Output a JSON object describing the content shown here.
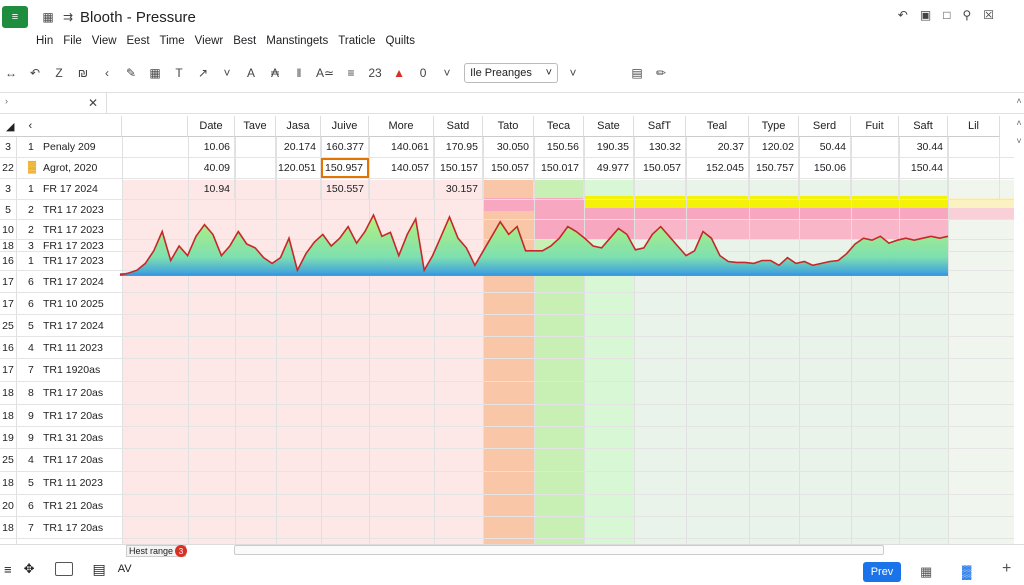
{
  "app": {
    "logo_text": "≡",
    "title": "Blooth - Pressure"
  },
  "menu": [
    "Hin",
    "File",
    "View",
    "Eest",
    "Time",
    "Viewr",
    "Best",
    "Manstingets",
    "Traticle",
    "Quilts"
  ],
  "toolbar": {
    "font_size": "23",
    "zero": "0",
    "font_name": "Ile Preanges"
  },
  "sheet_columns": [
    "Date",
    "Tave",
    "Jasa",
    "Juive",
    "More",
    "Satd",
    "Tato",
    "Teca",
    "Sate",
    "SafT",
    "Teal",
    "Type",
    "Serd",
    "Fuit",
    "Saft",
    "Lil"
  ],
  "rows": [
    {
      "num": "3",
      "sub": "1",
      "label": "Penaly 209",
      "values": [
        "10.06",
        "",
        "20.174",
        "160.377",
        "140.061",
        "170.95",
        "30.050",
        "150.56",
        "190.35",
        "130.32",
        "20.37",
        "120.02",
        "50.44",
        "",
        "30.44",
        ""
      ]
    },
    {
      "num": "22",
      "sub": "",
      "label": "Agrot, 2020",
      "values": [
        "40.09",
        "",
        "120.051",
        "150.957",
        "140.057",
        "150.157",
        "150.057",
        "150.017",
        "49.977",
        "150.057",
        "152.045",
        "150.757",
        "150.06",
        "",
        "150.44",
        ""
      ]
    },
    {
      "num": "3",
      "sub": "1",
      "label": "FR 17 2024",
      "values": [
        "10.94",
        "",
        "",
        "150.557",
        "",
        "30.157",
        "",
        "",
        "",
        "",
        "",
        "",
        "",
        "",
        "",
        ""
      ]
    },
    {
      "num": "5",
      "sub": "2",
      "label": "TR1 17 2023",
      "values": []
    },
    {
      "num": "10",
      "sub": "2",
      "label": "TR1 17 2023",
      "values": []
    },
    {
      "num": "18",
      "sub": "3",
      "label": "FR1 17 2023",
      "values": []
    },
    {
      "num": "16",
      "sub": "1",
      "label": "TR1 17 2023",
      "values": []
    },
    {
      "num": "17",
      "sub": "6",
      "label": "TR1 17 2024",
      "values": []
    },
    {
      "num": "17",
      "sub": "6",
      "label": "TR1 10 2025",
      "values": []
    },
    {
      "num": "25",
      "sub": "5",
      "label": "TR1 17 2024",
      "values": []
    },
    {
      "num": "16",
      "sub": "4",
      "label": "TR1 11 2023",
      "values": []
    },
    {
      "num": "17",
      "sub": "7",
      "label": "TR1 1920as",
      "values": []
    },
    {
      "num": "18",
      "sub": "8",
      "label": "TR1 17 20as",
      "values": []
    },
    {
      "num": "18",
      "sub": "9",
      "label": "TR1 17 20as",
      "values": []
    },
    {
      "num": "19",
      "sub": "9",
      "label": "TR1 31 20as",
      "values": []
    },
    {
      "num": "25",
      "sub": "4",
      "label": "TR1 17 20as",
      "values": []
    },
    {
      "num": "18",
      "sub": "5",
      "label": "TR1 11 2023",
      "values": []
    },
    {
      "num": "20",
      "sub": "6",
      "label": "TR1 21 20as",
      "values": []
    },
    {
      "num": "18",
      "sub": "7",
      "label": "TR1 17 20as",
      "values": []
    }
  ],
  "sparkline": {
    "values": [
      0,
      2,
      5,
      12,
      25,
      45,
      15,
      30,
      20,
      40,
      52,
      42,
      20,
      30,
      45,
      32,
      28,
      18,
      12,
      18,
      38,
      5,
      22,
      34,
      42,
      30,
      38,
      50,
      33,
      45,
      62,
      40,
      44,
      20,
      42,
      58,
      5,
      20,
      40,
      60,
      38,
      28,
      10,
      25,
      40,
      55,
      42,
      50,
      25,
      25,
      25,
      30,
      38,
      50,
      45,
      38,
      30,
      28,
      38,
      48,
      42,
      26,
      28,
      42,
      50,
      40,
      30,
      20,
      25,
      45,
      38,
      20,
      14,
      13,
      13,
      12,
      15,
      15,
      10,
      18,
      12,
      14,
      10,
      12,
      14,
      15,
      22,
      32,
      38,
      36,
      40,
      33,
      36,
      38,
      36,
      38,
      40,
      38,
      40
    ]
  },
  "bottom": {
    "sheet_tab": "Hest range",
    "badge": "3",
    "av_label": "AV",
    "prev_label": "Prev"
  },
  "colors": {
    "accent": "#1a73e8",
    "logo_green": "#1e8e3e",
    "selected_border": "#e37400",
    "spark_line": "#c62828"
  }
}
